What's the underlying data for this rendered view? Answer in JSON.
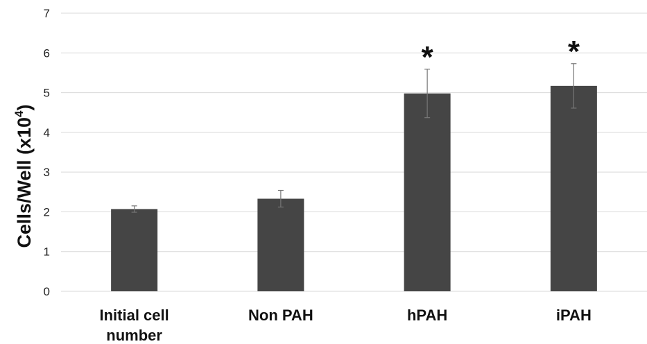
{
  "chart_data": {
    "type": "bar",
    "title": "",
    "xlabel": "",
    "ylabel": {
      "main": "Cells/Well (x10",
      "superscript": "4",
      "close": ")"
    },
    "ylim": [
      0,
      7
    ],
    "yticks": [
      "0",
      "1",
      "2",
      "3",
      "4",
      "5",
      "6",
      "7"
    ],
    "grid": true,
    "legend": "none",
    "categories": [
      [
        "Initial cell",
        "number"
      ],
      [
        "Non PAH"
      ],
      [
        "hPAH"
      ],
      [
        "iPAH"
      ]
    ],
    "values": [
      2.07,
      2.33,
      4.98,
      5.17
    ],
    "error": [
      0.08,
      0.21,
      0.61,
      0.56
    ],
    "annotations": [
      "",
      "",
      "*",
      "*"
    ],
    "colors": {
      "bar": "#454545",
      "grid": "#d9d9d9",
      "error": "#777777"
    }
  }
}
